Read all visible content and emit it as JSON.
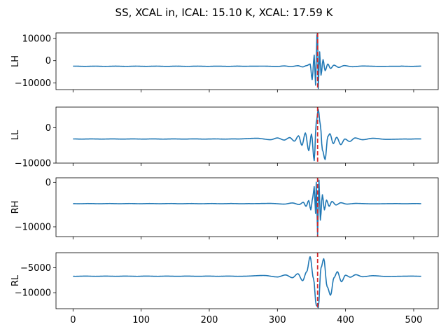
{
  "title": "SS, XCAL in, ICAL: 15.10 K, XCAL: 17.59 K",
  "colors": {
    "trace": "#1f77b4",
    "marker": "#d62728"
  },
  "chart_data": {
    "type": "line",
    "shared_x": true,
    "xlim": [
      -25,
      536
    ],
    "x_ticks": [
      0,
      100,
      200,
      300,
      400,
      500
    ],
    "x_tick_labels": [
      "0",
      "100",
      "200",
      "300",
      "400",
      "500"
    ],
    "marker_x": 359,
    "marker_style": "dashed",
    "panels": [
      {
        "ylabel": "LH",
        "ylim": [
          -13000,
          12500
        ],
        "y_ticks": [
          10000,
          0,
          -10000
        ],
        "y_tick_labels": [
          "10000",
          "0",
          "−10000"
        ],
        "baseline": -2500,
        "ripple": [
          {
            "x": 250,
            "y": -2500
          },
          {
            "x": 280,
            "y": -2450
          },
          {
            "x": 300,
            "y": -2600
          },
          {
            "x": 310,
            "y": -2350
          },
          {
            "x": 320,
            "y": -2650
          },
          {
            "x": 330,
            "y": -2250
          },
          {
            "x": 337,
            "y": -2800
          },
          {
            "x": 343,
            "y": -2200
          },
          {
            "x": 348,
            "y": -1500
          },
          {
            "x": 351,
            "y": -8500
          },
          {
            "x": 354,
            "y": 2500
          },
          {
            "x": 356,
            "y": -11000
          },
          {
            "x": 358,
            "y": 11500
          },
          {
            "x": 359,
            "y": 12500
          },
          {
            "x": 360,
            "y": -12500
          },
          {
            "x": 362,
            "y": 4000
          },
          {
            "x": 364,
            "y": -6500
          },
          {
            "x": 367,
            "y": 500
          },
          {
            "x": 370,
            "y": -4500
          },
          {
            "x": 374,
            "y": -1500
          },
          {
            "x": 378,
            "y": -3500
          },
          {
            "x": 383,
            "y": -2000
          },
          {
            "x": 390,
            "y": -3000
          },
          {
            "x": 398,
            "y": -2200
          },
          {
            "x": 410,
            "y": -2700
          },
          {
            "x": 425,
            "y": -2400
          },
          {
            "x": 450,
            "y": -2550
          },
          {
            "x": 480,
            "y": -2500
          }
        ]
      },
      {
        "ylabel": "LL",
        "ylim": [
          -10000,
          5800
        ],
        "y_ticks": [
          0,
          -10000
        ],
        "y_tick_labels": [
          "0",
          "−10000"
        ],
        "baseline": -3200,
        "ripple": [
          {
            "x": 240,
            "y": -3200
          },
          {
            "x": 270,
            "y": -3000
          },
          {
            "x": 290,
            "y": -3400
          },
          {
            "x": 300,
            "y": -2900
          },
          {
            "x": 310,
            "y": -3500
          },
          {
            "x": 318,
            "y": -2800
          },
          {
            "x": 325,
            "y": -3800
          },
          {
            "x": 331,
            "y": -2300
          },
          {
            "x": 336,
            "y": -5000
          },
          {
            "x": 341,
            "y": -1500
          },
          {
            "x": 346,
            "y": -6500
          },
          {
            "x": 350,
            "y": -1800
          },
          {
            "x": 354,
            "y": -9300
          },
          {
            "x": 357,
            "y": 1500
          },
          {
            "x": 360,
            "y": 5200
          },
          {
            "x": 363,
            "y": 800
          },
          {
            "x": 366,
            "y": -6300
          },
          {
            "x": 370,
            "y": -9000
          },
          {
            "x": 374,
            "y": -2500
          },
          {
            "x": 377,
            "y": -1700
          },
          {
            "x": 382,
            "y": -4500
          },
          {
            "x": 387,
            "y": -2700
          },
          {
            "x": 393,
            "y": -4800
          },
          {
            "x": 399,
            "y": -3200
          },
          {
            "x": 406,
            "y": -3900
          },
          {
            "x": 414,
            "y": -2900
          },
          {
            "x": 425,
            "y": -3400
          },
          {
            "x": 440,
            "y": -3000
          },
          {
            "x": 460,
            "y": -3300
          },
          {
            "x": 490,
            "y": -3200
          }
        ]
      },
      {
        "ylabel": "RH",
        "ylim": [
          -12200,
          1000
        ],
        "y_ticks": [
          0,
          -10000
        ],
        "y_tick_labels": [
          "0",
          "−10000"
        ],
        "baseline": -4800,
        "ripple": [
          {
            "x": 260,
            "y": -4800
          },
          {
            "x": 290,
            "y": -4750
          },
          {
            "x": 310,
            "y": -4900
          },
          {
            "x": 322,
            "y": -4650
          },
          {
            "x": 332,
            "y": -5000
          },
          {
            "x": 338,
            "y": -4500
          },
          {
            "x": 342,
            "y": -5400
          },
          {
            "x": 346,
            "y": -4100
          },
          {
            "x": 349,
            "y": -6200
          },
          {
            "x": 352,
            "y": -3300
          },
          {
            "x": 354,
            "y": -1000
          },
          {
            "x": 356,
            "y": -7000
          },
          {
            "x": 357,
            "y": 0
          },
          {
            "x": 359,
            "y": -12000
          },
          {
            "x": 361,
            "y": 500
          },
          {
            "x": 363,
            "y": -8500
          },
          {
            "x": 366,
            "y": -2800
          },
          {
            "x": 369,
            "y": -6200
          },
          {
            "x": 372,
            "y": -4000
          },
          {
            "x": 376,
            "y": -5400
          },
          {
            "x": 380,
            "y": -4300
          },
          {
            "x": 386,
            "y": -5100
          },
          {
            "x": 393,
            "y": -4600
          },
          {
            "x": 402,
            "y": -4900
          },
          {
            "x": 415,
            "y": -4750
          },
          {
            "x": 440,
            "y": -4850
          },
          {
            "x": 470,
            "y": -4800
          }
        ]
      },
      {
        "ylabel": "RL",
        "ylim": [
          -13200,
          -2000
        ],
        "y_ticks": [
          -5000,
          -10000
        ],
        "y_tick_labels": [
          "−5000",
          "−10000"
        ],
        "baseline": -6700,
        "ripple": [
          {
            "x": 250,
            "y": -6700
          },
          {
            "x": 280,
            "y": -6550
          },
          {
            "x": 300,
            "y": -6850
          },
          {
            "x": 312,
            "y": -6450
          },
          {
            "x": 322,
            "y": -7000
          },
          {
            "x": 330,
            "y": -6200
          },
          {
            "x": 337,
            "y": -7600
          },
          {
            "x": 343,
            "y": -5800
          },
          {
            "x": 348,
            "y": -2800
          },
          {
            "x": 353,
            "y": -7200
          },
          {
            "x": 357,
            "y": -12500
          },
          {
            "x": 360,
            "y": -13000
          },
          {
            "x": 364,
            "y": -5000
          },
          {
            "x": 368,
            "y": -3200
          },
          {
            "x": 373,
            "y": -8800
          },
          {
            "x": 378,
            "y": -10500
          },
          {
            "x": 383,
            "y": -7000
          },
          {
            "x": 388,
            "y": -5800
          },
          {
            "x": 394,
            "y": -7800
          },
          {
            "x": 400,
            "y": -6500
          },
          {
            "x": 407,
            "y": -6900
          },
          {
            "x": 415,
            "y": -6400
          },
          {
            "x": 425,
            "y": -6800
          },
          {
            "x": 440,
            "y": -6600
          },
          {
            "x": 460,
            "y": -6750
          },
          {
            "x": 490,
            "y": -6700
          }
        ]
      }
    ]
  }
}
